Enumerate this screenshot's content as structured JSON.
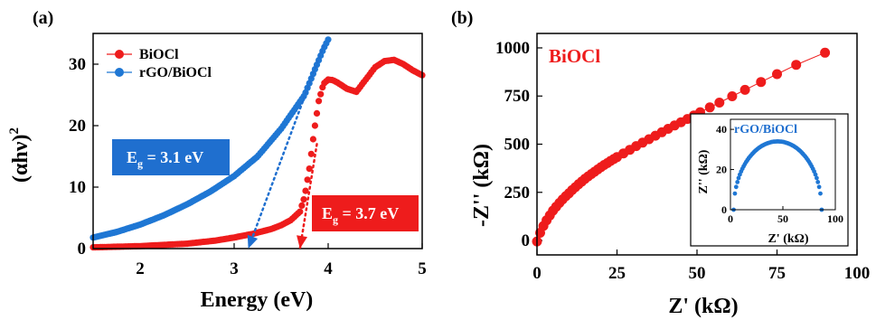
{
  "chart_data": [
    {
      "type": "scatter",
      "panel": "(a)",
      "xlabel": "Energy (eV)",
      "ylabel": "(αhν)²",
      "ylabel_main": "(αhν)",
      "ylabel_sup": "2",
      "xlim": [
        1.5,
        5.0
      ],
      "ylim": [
        0,
        35
      ],
      "xticks": [
        2,
        3,
        4,
        5
      ],
      "yticks": [
        0,
        10,
        20,
        30
      ],
      "legend_position": "top-left",
      "series": [
        {
          "name": "BiOCl",
          "color": "#ee1c1c",
          "x": [
            1.5,
            2.0,
            2.5,
            2.8,
            3.0,
            3.2,
            3.4,
            3.5,
            3.6,
            3.7,
            3.75,
            3.8,
            3.85,
            3.9,
            3.95,
            4.0,
            4.05,
            4.1,
            4.2,
            4.3,
            4.4,
            4.5,
            4.6,
            4.7,
            4.8,
            4.9,
            5.0
          ],
          "y": [
            0.2,
            0.4,
            0.8,
            1.3,
            1.8,
            2.4,
            3.2,
            3.8,
            4.6,
            6.0,
            8.5,
            13.0,
            19.0,
            24.0,
            26.8,
            27.5,
            27.4,
            27.0,
            26.0,
            25.5,
            27.5,
            29.5,
            30.5,
            30.7,
            30.0,
            29.0,
            28.2
          ]
        },
        {
          "name": "rGO/BiOCl",
          "color": "#1f77d4",
          "x": [
            1.5,
            1.75,
            2.0,
            2.25,
            2.5,
            2.75,
            3.0,
            3.25,
            3.5,
            3.75,
            3.85,
            3.95,
            4.0
          ],
          "y": [
            1.8,
            2.7,
            3.9,
            5.4,
            7.2,
            9.3,
            11.8,
            15.0,
            19.5,
            25.0,
            28.8,
            32.5,
            34.0
          ]
        }
      ],
      "annotations": [
        {
          "text_main": "E",
          "text_sub": "g",
          "text_rest": " = 3.1 eV",
          "color": "#1f6fcf",
          "tangent_from": [
            3.15,
            0.0
          ],
          "tangent_to": [
            3.95,
            33.0
          ]
        },
        {
          "text_main": "E",
          "text_sub": "g",
          "text_rest": " = 3.7 eV",
          "color": "#ee1c1c",
          "tangent_from": [
            3.7,
            0.0
          ],
          "tangent_to": [
            3.88,
            17.0
          ]
        }
      ]
    },
    {
      "type": "scatter",
      "panel": "(b)",
      "title": "BiOCl",
      "xlabel": "Z' (kΩ)",
      "ylabel": "-Z'' (kΩ)",
      "xlim": [
        0,
        100
      ],
      "ylim": [
        -75,
        1075
      ],
      "xticks": [
        0,
        25,
        50,
        75,
        100
      ],
      "yticks": [
        0,
        250,
        500,
        750,
        1000
      ],
      "series": [
        {
          "name": "BiOCl",
          "color": "#ee1c1c",
          "x": [
            0,
            1,
            2,
            3,
            4,
            5,
            6,
            7,
            8,
            9,
            10,
            11,
            12,
            13,
            14,
            15,
            16,
            17,
            18,
            19,
            20,
            21,
            22,
            23,
            24,
            25,
            27,
            29,
            31,
            33,
            35,
            37,
            39,
            41,
            43,
            45,
            47,
            49,
            51,
            54,
            57,
            61,
            65,
            70,
            75,
            81,
            90
          ],
          "y": [
            -5,
            40,
            75,
            105,
            130,
            155,
            175,
            195,
            213,
            230,
            245,
            262,
            277,
            292,
            306,
            320,
            333,
            345,
            357,
            369,
            381,
            392,
            402,
            413,
            423,
            433,
            452,
            471,
            490,
            508,
            526,
            544,
            562,
            580,
            597,
            614,
            631,
            649,
            666,
            691,
            716,
            749,
            782,
            823,
            864,
            912,
            975
          ]
        }
      ],
      "inset": {
        "type": "scatter",
        "title": "rGO/BiOCl",
        "xlabel": "Z' (kΩ)",
        "ylabel": "Z'' (kΩ)",
        "xlim": [
          0,
          100
        ],
        "ylim": [
          0,
          45
        ],
        "xticks": [
          0,
          50,
          100
        ],
        "yticks": [
          0,
          20,
          40
        ],
        "series": [
          {
            "name": "rGO/BiOCl",
            "color": "#1f77d4",
            "center": 45,
            "radius_x": 42,
            "height": 34,
            "x_start": 3,
            "x_end": 87
          }
        ]
      }
    }
  ]
}
